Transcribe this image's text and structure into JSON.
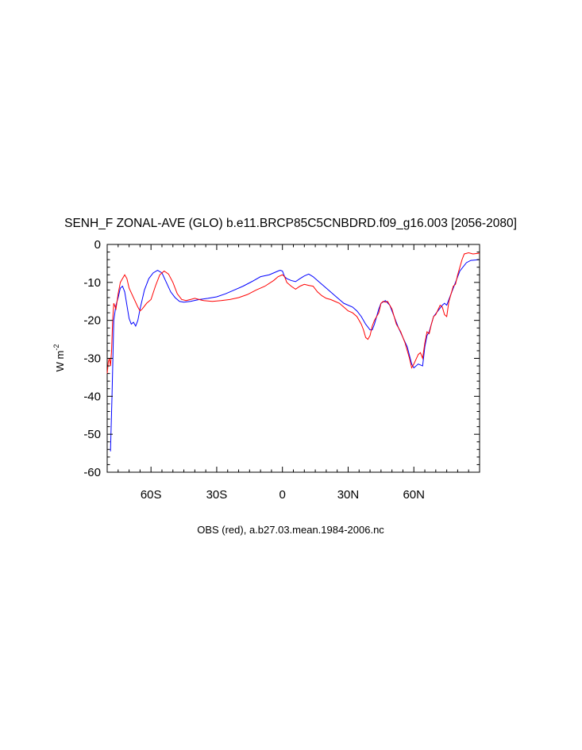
{
  "chart_data": {
    "type": "line",
    "title": "SENH_F ZONAL-AVE (GLO) b.e11.BRCP85C5CNBDRD.f09_g16.003 [2056-2080]",
    "ylabel_main": "W m",
    "ylabel_sup": "-2",
    "caption": "OBS (red), a.b27.03.mean.1984-2006.nc",
    "xlim": [
      -80,
      90
    ],
    "ylim": [
      -60,
      0
    ],
    "xticks": [
      {
        "value": -60,
        "label": "60S"
      },
      {
        "value": -30,
        "label": "30S"
      },
      {
        "value": 0,
        "label": "0"
      },
      {
        "value": 30,
        "label": "30N"
      },
      {
        "value": 60,
        "label": "60N"
      }
    ],
    "yticks": [
      {
        "value": 0,
        "label": "0"
      },
      {
        "value": -10,
        "label": "-10"
      },
      {
        "value": -20,
        "label": "-20"
      },
      {
        "value": -30,
        "label": "-30"
      },
      {
        "value": -40,
        "label": "-40"
      },
      {
        "value": -50,
        "label": "-50"
      },
      {
        "value": -60,
        "label": "-60"
      }
    ],
    "grid": false,
    "series": [
      {
        "color": "#0000ff",
        "points": [
          [
            -78.5,
            -54.5
          ],
          [
            -77.8,
            -40
          ],
          [
            -77,
            -20
          ],
          [
            -76,
            -16
          ],
          [
            -75,
            -14
          ],
          [
            -74,
            -11.5
          ],
          [
            -73,
            -11
          ],
          [
            -72,
            -12.5
          ],
          [
            -71,
            -16
          ],
          [
            -70,
            -19.5
          ],
          [
            -69,
            -21
          ],
          [
            -68,
            -20.5
          ],
          [
            -67,
            -21.5
          ],
          [
            -66,
            -20
          ],
          [
            -65,
            -17
          ],
          [
            -63,
            -12
          ],
          [
            -61,
            -9
          ],
          [
            -59,
            -7.5
          ],
          [
            -57,
            -6.8
          ],
          [
            -55,
            -7.5
          ],
          [
            -53,
            -10
          ],
          [
            -51,
            -12.5
          ],
          [
            -49,
            -14
          ],
          [
            -47,
            -15
          ],
          [
            -45,
            -15.2
          ],
          [
            -42,
            -15
          ],
          [
            -38,
            -14.5
          ],
          [
            -34,
            -14.2
          ],
          [
            -30,
            -13.8
          ],
          [
            -26,
            -13
          ],
          [
            -22,
            -12
          ],
          [
            -18,
            -11
          ],
          [
            -14,
            -9.8
          ],
          [
            -10,
            -8.5
          ],
          [
            -6,
            -8
          ],
          [
            -4,
            -7.5
          ],
          [
            -2,
            -7
          ],
          [
            -1,
            -6.8
          ],
          [
            0,
            -7
          ],
          [
            1,
            -8.5
          ],
          [
            2,
            -9
          ],
          [
            4,
            -9.5
          ],
          [
            6,
            -9.8
          ],
          [
            8,
            -9
          ],
          [
            10,
            -8.3
          ],
          [
            12,
            -7.8
          ],
          [
            14,
            -8.5
          ],
          [
            17,
            -10
          ],
          [
            20,
            -11.5
          ],
          [
            24,
            -13.5
          ],
          [
            28,
            -15.5
          ],
          [
            32,
            -16.5
          ],
          [
            34,
            -17.5
          ],
          [
            36,
            -19
          ],
          [
            38,
            -21
          ],
          [
            40,
            -22.5
          ],
          [
            41,
            -22.5
          ],
          [
            42,
            -21
          ],
          [
            44,
            -17
          ],
          [
            45,
            -15.5
          ],
          [
            47,
            -14.8
          ],
          [
            49,
            -16
          ],
          [
            51,
            -19
          ],
          [
            53,
            -22
          ],
          [
            55,
            -24.5
          ],
          [
            57,
            -27
          ],
          [
            59,
            -31.5
          ],
          [
            60,
            -32.5
          ],
          [
            62,
            -31.5
          ],
          [
            64,
            -32
          ],
          [
            65,
            -27
          ],
          [
            66,
            -24
          ],
          [
            67,
            -23
          ],
          [
            69,
            -19
          ],
          [
            71,
            -17.5
          ],
          [
            73,
            -16
          ],
          [
            74,
            -15.5
          ],
          [
            75,
            -16
          ],
          [
            77,
            -13
          ],
          [
            79,
            -10
          ],
          [
            81,
            -7
          ],
          [
            84,
            -4.8
          ],
          [
            86,
            -4.2
          ],
          [
            90,
            -4
          ]
        ]
      },
      {
        "color": "#ff0000",
        "points": [
          [
            -80,
            -34
          ],
          [
            -79.5,
            -31
          ],
          [
            -79,
            -30
          ],
          [
            -78.5,
            -32
          ],
          [
            -78,
            -28
          ],
          [
            -77.5,
            -20
          ],
          [
            -77,
            -15.5
          ],
          [
            -76,
            -17
          ],
          [
            -75,
            -13
          ],
          [
            -74,
            -10
          ],
          [
            -73,
            -9
          ],
          [
            -72,
            -8
          ],
          [
            -71,
            -9
          ],
          [
            -70,
            -11.5
          ],
          [
            -68,
            -14
          ],
          [
            -66,
            -16.5
          ],
          [
            -65,
            -17.5
          ],
          [
            -64,
            -17
          ],
          [
            -62,
            -15.5
          ],
          [
            -60,
            -14.5
          ],
          [
            -58,
            -11
          ],
          [
            -56,
            -8
          ],
          [
            -54,
            -7
          ],
          [
            -52,
            -7.8
          ],
          [
            -50,
            -10
          ],
          [
            -48,
            -13
          ],
          [
            -46,
            -14.5
          ],
          [
            -44,
            -14.8
          ],
          [
            -42,
            -14.5
          ],
          [
            -40,
            -14.2
          ],
          [
            -38,
            -14.5
          ],
          [
            -36,
            -14.8
          ],
          [
            -32,
            -15
          ],
          [
            -28,
            -14.8
          ],
          [
            -24,
            -14.5
          ],
          [
            -20,
            -14
          ],
          [
            -16,
            -13.2
          ],
          [
            -12,
            -12
          ],
          [
            -8,
            -11
          ],
          [
            -4,
            -9.5
          ],
          [
            -2,
            -8.5
          ],
          [
            0,
            -8
          ],
          [
            1,
            -8.5
          ],
          [
            2,
            -10
          ],
          [
            4,
            -11
          ],
          [
            6,
            -11.8
          ],
          [
            8,
            -11
          ],
          [
            10,
            -10.5
          ],
          [
            12,
            -10.8
          ],
          [
            14,
            -11
          ],
          [
            16,
            -12.5
          ],
          [
            18,
            -13.5
          ],
          [
            20,
            -14.2
          ],
          [
            22,
            -14.5
          ],
          [
            24,
            -15
          ],
          [
            26,
            -15.5
          ],
          [
            28,
            -16.5
          ],
          [
            30,
            -17.5
          ],
          [
            32,
            -18
          ],
          [
            34,
            -19
          ],
          [
            36,
            -21
          ],
          [
            37,
            -22.5
          ],
          [
            38,
            -24.5
          ],
          [
            39,
            -25
          ],
          [
            40,
            -24
          ],
          [
            41,
            -21.5
          ],
          [
            42,
            -20
          ],
          [
            44,
            -18
          ],
          [
            45,
            -15.5
          ],
          [
            46,
            -15
          ],
          [
            47,
            -15.2
          ],
          [
            48,
            -15
          ],
          [
            50,
            -17
          ],
          [
            52,
            -21
          ],
          [
            54,
            -23
          ],
          [
            56,
            -26
          ],
          [
            58,
            -30
          ],
          [
            59,
            -32.5
          ],
          [
            60,
            -31.5
          ],
          [
            62,
            -29
          ],
          [
            63,
            -28.5
          ],
          [
            64,
            -30
          ],
          [
            65,
            -26
          ],
          [
            66,
            -23
          ],
          [
            67,
            -23.5
          ],
          [
            68,
            -21
          ],
          [
            69,
            -19
          ],
          [
            70,
            -18.5
          ],
          [
            72,
            -16
          ],
          [
            73,
            -16.5
          ],
          [
            74,
            -18.5
          ],
          [
            75,
            -19
          ],
          [
            76,
            -15
          ],
          [
            77,
            -13
          ],
          [
            78,
            -11
          ],
          [
            79,
            -10.5
          ],
          [
            80,
            -8
          ],
          [
            81,
            -6
          ],
          [
            82,
            -4
          ],
          [
            83,
            -2.5
          ],
          [
            85,
            -2.2
          ],
          [
            87,
            -2.5
          ],
          [
            90,
            -2.3
          ]
        ]
      }
    ]
  }
}
